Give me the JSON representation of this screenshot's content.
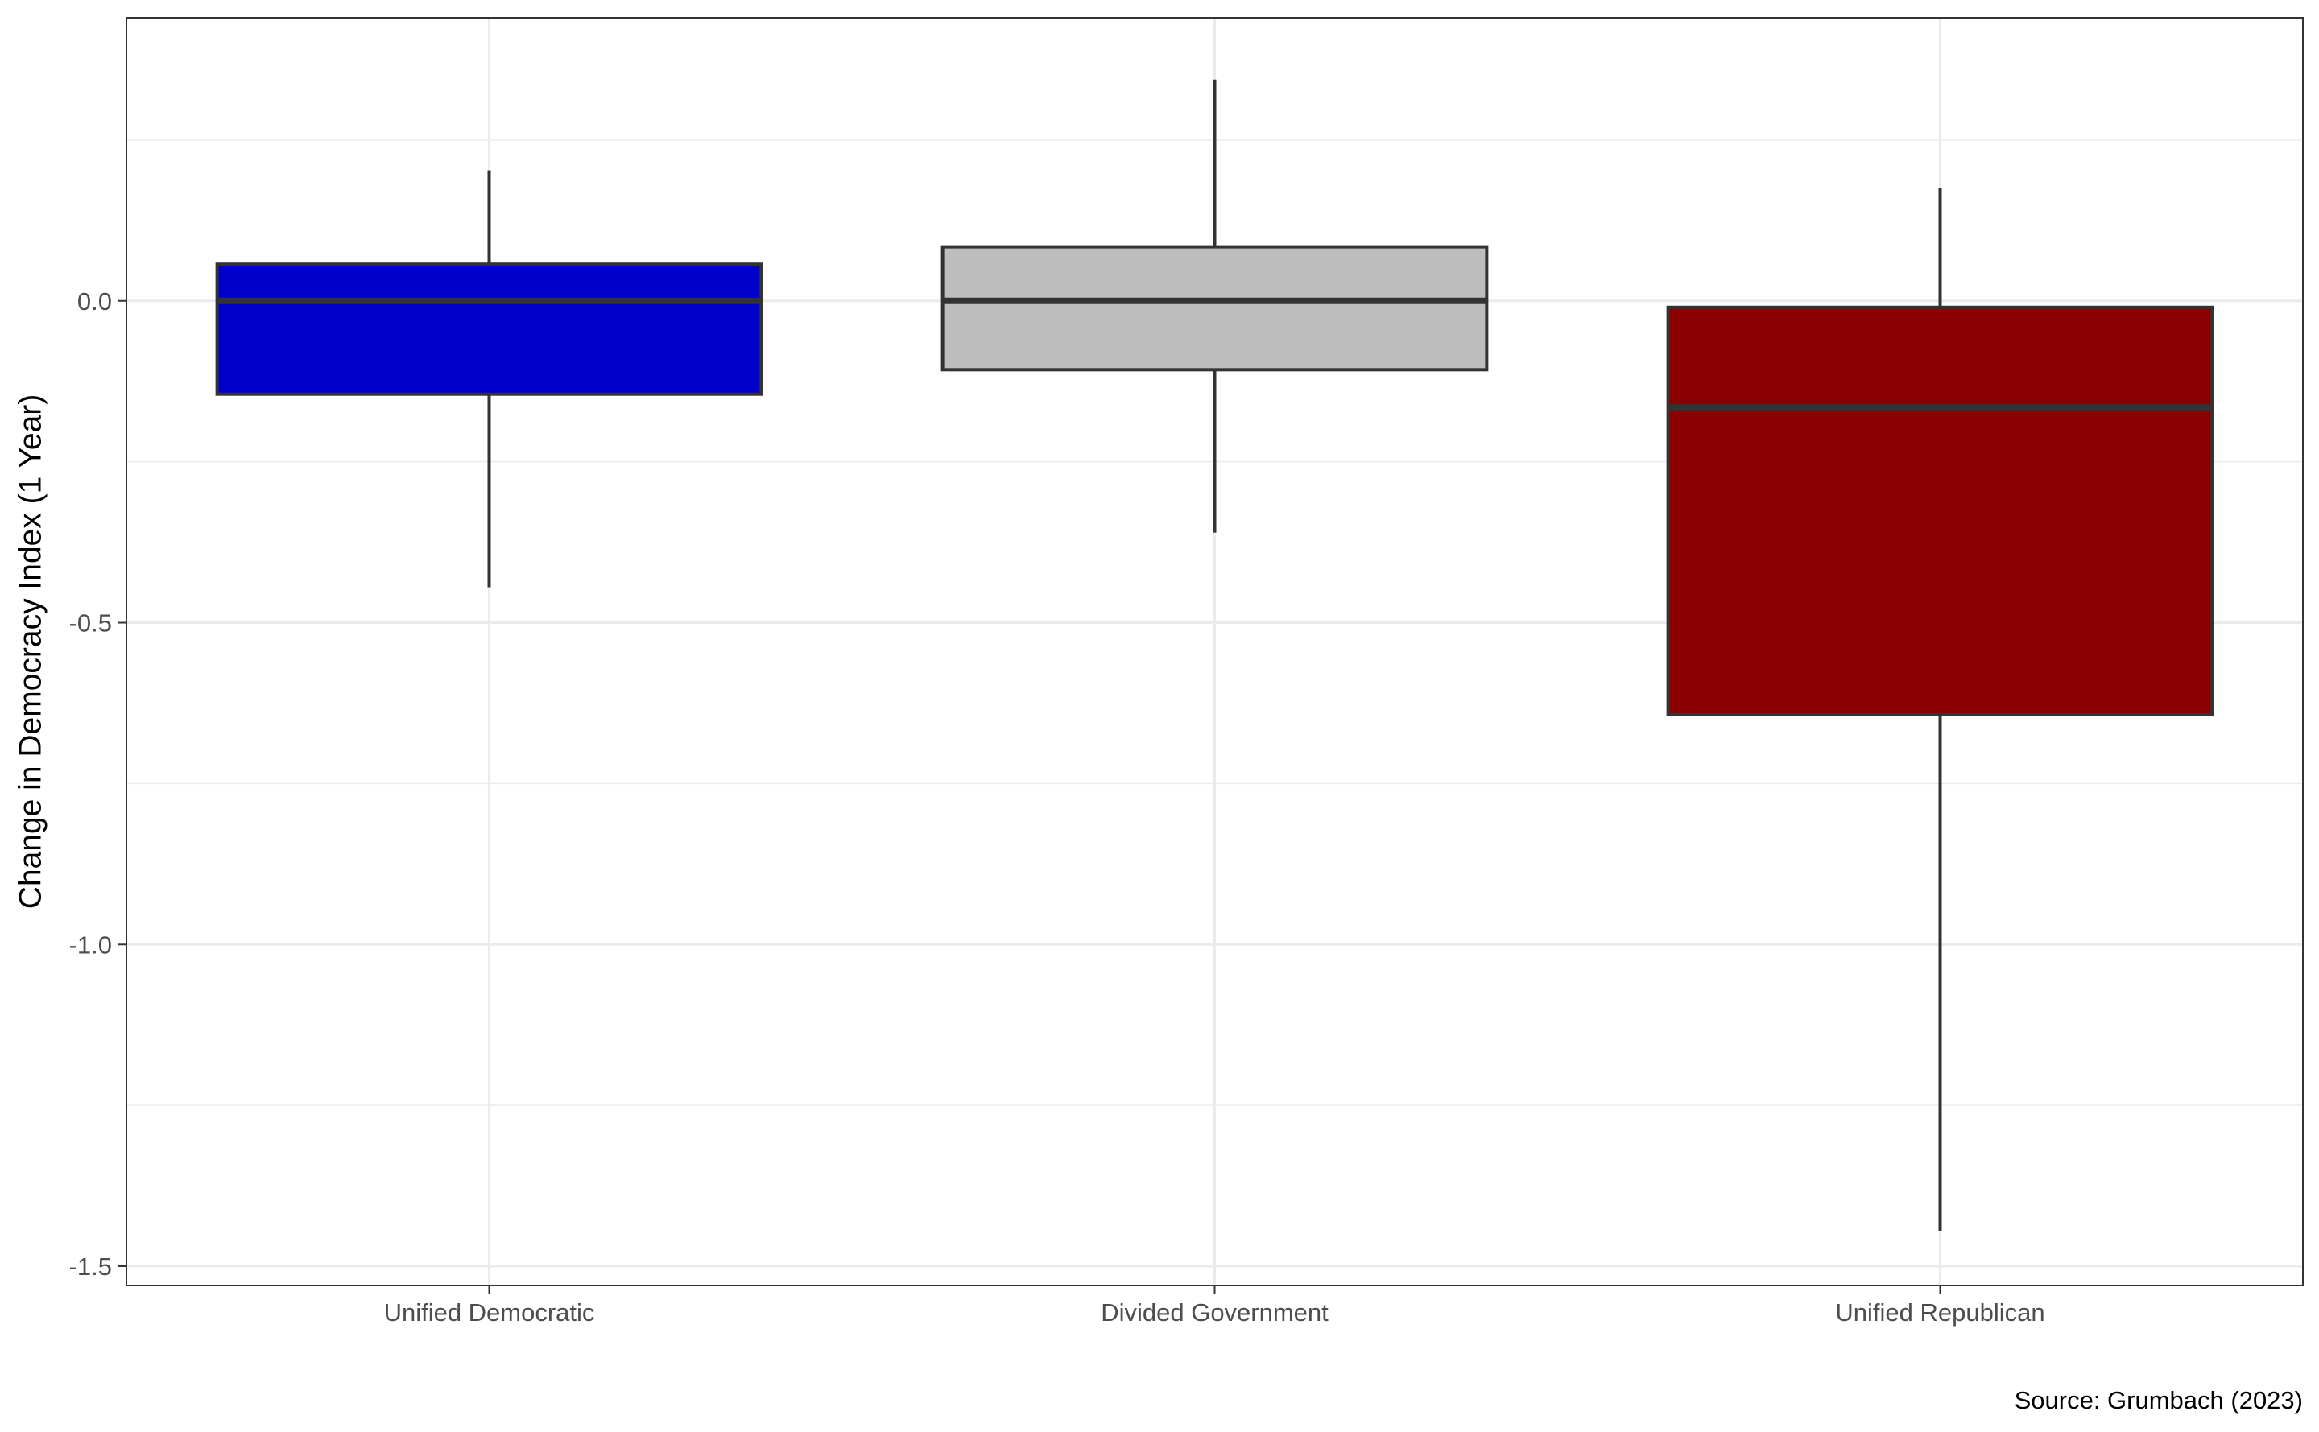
{
  "chart_data": {
    "type": "boxplot",
    "title": "",
    "xlabel": "",
    "ylabel": "Change in Democracy Index (1 Year)",
    "caption": "Source: Grumbach (2023)",
    "ylim": [
      -1.53,
      0.44
    ],
    "yticks": [
      0.0,
      -0.5,
      -1.0,
      -1.5
    ],
    "ytick_labels": [
      "0.0",
      "-0.5",
      "-1.0",
      "-1.5"
    ],
    "grid": true,
    "categories": [
      "Unified Democratic",
      "Divided Government",
      "Unified Republican"
    ],
    "boxes": [
      {
        "category": "Unified Democratic",
        "whisker_low": -0.445,
        "q1": -0.145,
        "median": 0.0,
        "q3": 0.057,
        "whisker_high": 0.203,
        "color": "#0000CD"
      },
      {
        "category": "Divided Government",
        "whisker_low": -0.36,
        "q1": -0.107,
        "median": 0.0,
        "q3": 0.084,
        "whisker_high": 0.344,
        "color": "#BEBEBE"
      },
      {
        "category": "Unified Republican",
        "whisker_low": -1.445,
        "q1": -0.643,
        "median": -0.165,
        "q3": -0.01,
        "whisker_high": 0.175,
        "color": "#8B0000"
      }
    ]
  }
}
